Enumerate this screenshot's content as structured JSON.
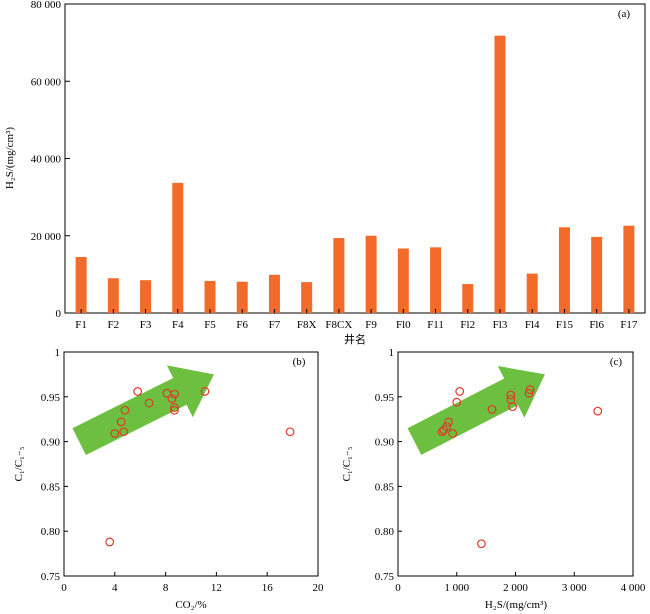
{
  "chart_data": [
    {
      "type": "bar",
      "panel_label": "(a)",
      "ylabel": "H₂S/(mg/cm³)",
      "xlabel": "井名",
      "categories": [
        "F1",
        "F2",
        "F3",
        "F4",
        "F5",
        "F6",
        "F7",
        "F8X",
        "F8CX",
        "F9",
        "Fl0",
        "F11",
        "Fl2",
        "Fl3",
        "Fl4",
        "F15",
        "Fl6",
        "F17"
      ],
      "values": [
        14500,
        9000,
        8500,
        33700,
        8300,
        8100,
        9900,
        8000,
        19400,
        20000,
        16700,
        17000,
        7500,
        71800,
        10200,
        22200,
        19700,
        22600
      ],
      "ylim": [
        0,
        80000
      ],
      "yticks": [
        0,
        20000,
        40000,
        60000,
        80000
      ],
      "ytick_labels": [
        "0",
        "20 000",
        "40 000",
        "60 000",
        "80 000"
      ],
      "bar_color": "#f26b2a"
    },
    {
      "type": "scatter",
      "panel_label": "(b)",
      "xlabel": "CO₂/%",
      "ylabel": "C₁/C₁₋₅",
      "xlim": [
        0,
        20
      ],
      "ylim": [
        0.75,
        1.0
      ],
      "xticks": [
        0,
        4,
        8,
        12,
        16,
        20
      ],
      "xtick_labels": [
        "0",
        "4",
        "8",
        "12",
        "16",
        "20"
      ],
      "yticks": [
        0.75,
        0.8,
        0.85,
        0.9,
        0.95,
        1.0
      ],
      "ytick_labels": [
        "0.75",
        "0.80",
        "0.85",
        "0.90",
        "0.95",
        "1"
      ],
      "points": [
        {
          "x": 3.6,
          "y": 0.788
        },
        {
          "x": 4.0,
          "y": 0.909
        },
        {
          "x": 4.5,
          "y": 0.922
        },
        {
          "x": 4.7,
          "y": 0.911
        },
        {
          "x": 4.8,
          "y": 0.935
        },
        {
          "x": 5.8,
          "y": 0.956
        },
        {
          "x": 6.7,
          "y": 0.943
        },
        {
          "x": 8.1,
          "y": 0.954
        },
        {
          "x": 8.5,
          "y": 0.948
        },
        {
          "x": 8.7,
          "y": 0.953
        },
        {
          "x": 8.7,
          "y": 0.938
        },
        {
          "x": 8.7,
          "y": 0.935
        },
        {
          "x": 11.1,
          "y": 0.956
        },
        {
          "x": 17.8,
          "y": 0.911
        }
      ],
      "trend_arrow": {
        "from": {
          "x": 1.2,
          "y": 0.9
        },
        "to": {
          "x": 11.8,
          "y": 0.975
        }
      },
      "marker_color": "#e03a2a",
      "arrow_color": "#6cbf3f"
    },
    {
      "type": "scatter",
      "panel_label": "(c)",
      "xlabel": "H₂S/(mg/cm³)",
      "ylabel": "C₁/C₁₋₅",
      "xlim": [
        0,
        4000
      ],
      "ylim": [
        0.75,
        1.0
      ],
      "xticks": [
        0,
        1000,
        2000,
        3000,
        4000
      ],
      "xtick_labels": [
        "0",
        "1 000",
        "2 000",
        "3 000",
        "4 000"
      ],
      "yticks": [
        0.75,
        0.8,
        0.85,
        0.9,
        0.95,
        1.0
      ],
      "ytick_labels": [
        "0.75",
        "0.80",
        "0.85",
        "0.90",
        "0.95",
        "1"
      ],
      "points": [
        {
          "x": 750,
          "y": 0.911
        },
        {
          "x": 780,
          "y": 0.913
        },
        {
          "x": 830,
          "y": 0.917
        },
        {
          "x": 860,
          "y": 0.922
        },
        {
          "x": 930,
          "y": 0.909
        },
        {
          "x": 1000,
          "y": 0.944
        },
        {
          "x": 1050,
          "y": 0.956
        },
        {
          "x": 1420,
          "y": 0.786
        },
        {
          "x": 1600,
          "y": 0.936
        },
        {
          "x": 1920,
          "y": 0.947
        },
        {
          "x": 1920,
          "y": 0.952
        },
        {
          "x": 1950,
          "y": 0.939
        },
        {
          "x": 2230,
          "y": 0.954
        },
        {
          "x": 2250,
          "y": 0.958
        },
        {
          "x": 3400,
          "y": 0.934
        }
      ],
      "trend_arrow": {
        "from": {
          "x": 280,
          "y": 0.9
        },
        "to": {
          "x": 2500,
          "y": 0.975
        }
      },
      "marker_color": "#e03a2a",
      "arrow_color": "#6cbf3f"
    }
  ]
}
